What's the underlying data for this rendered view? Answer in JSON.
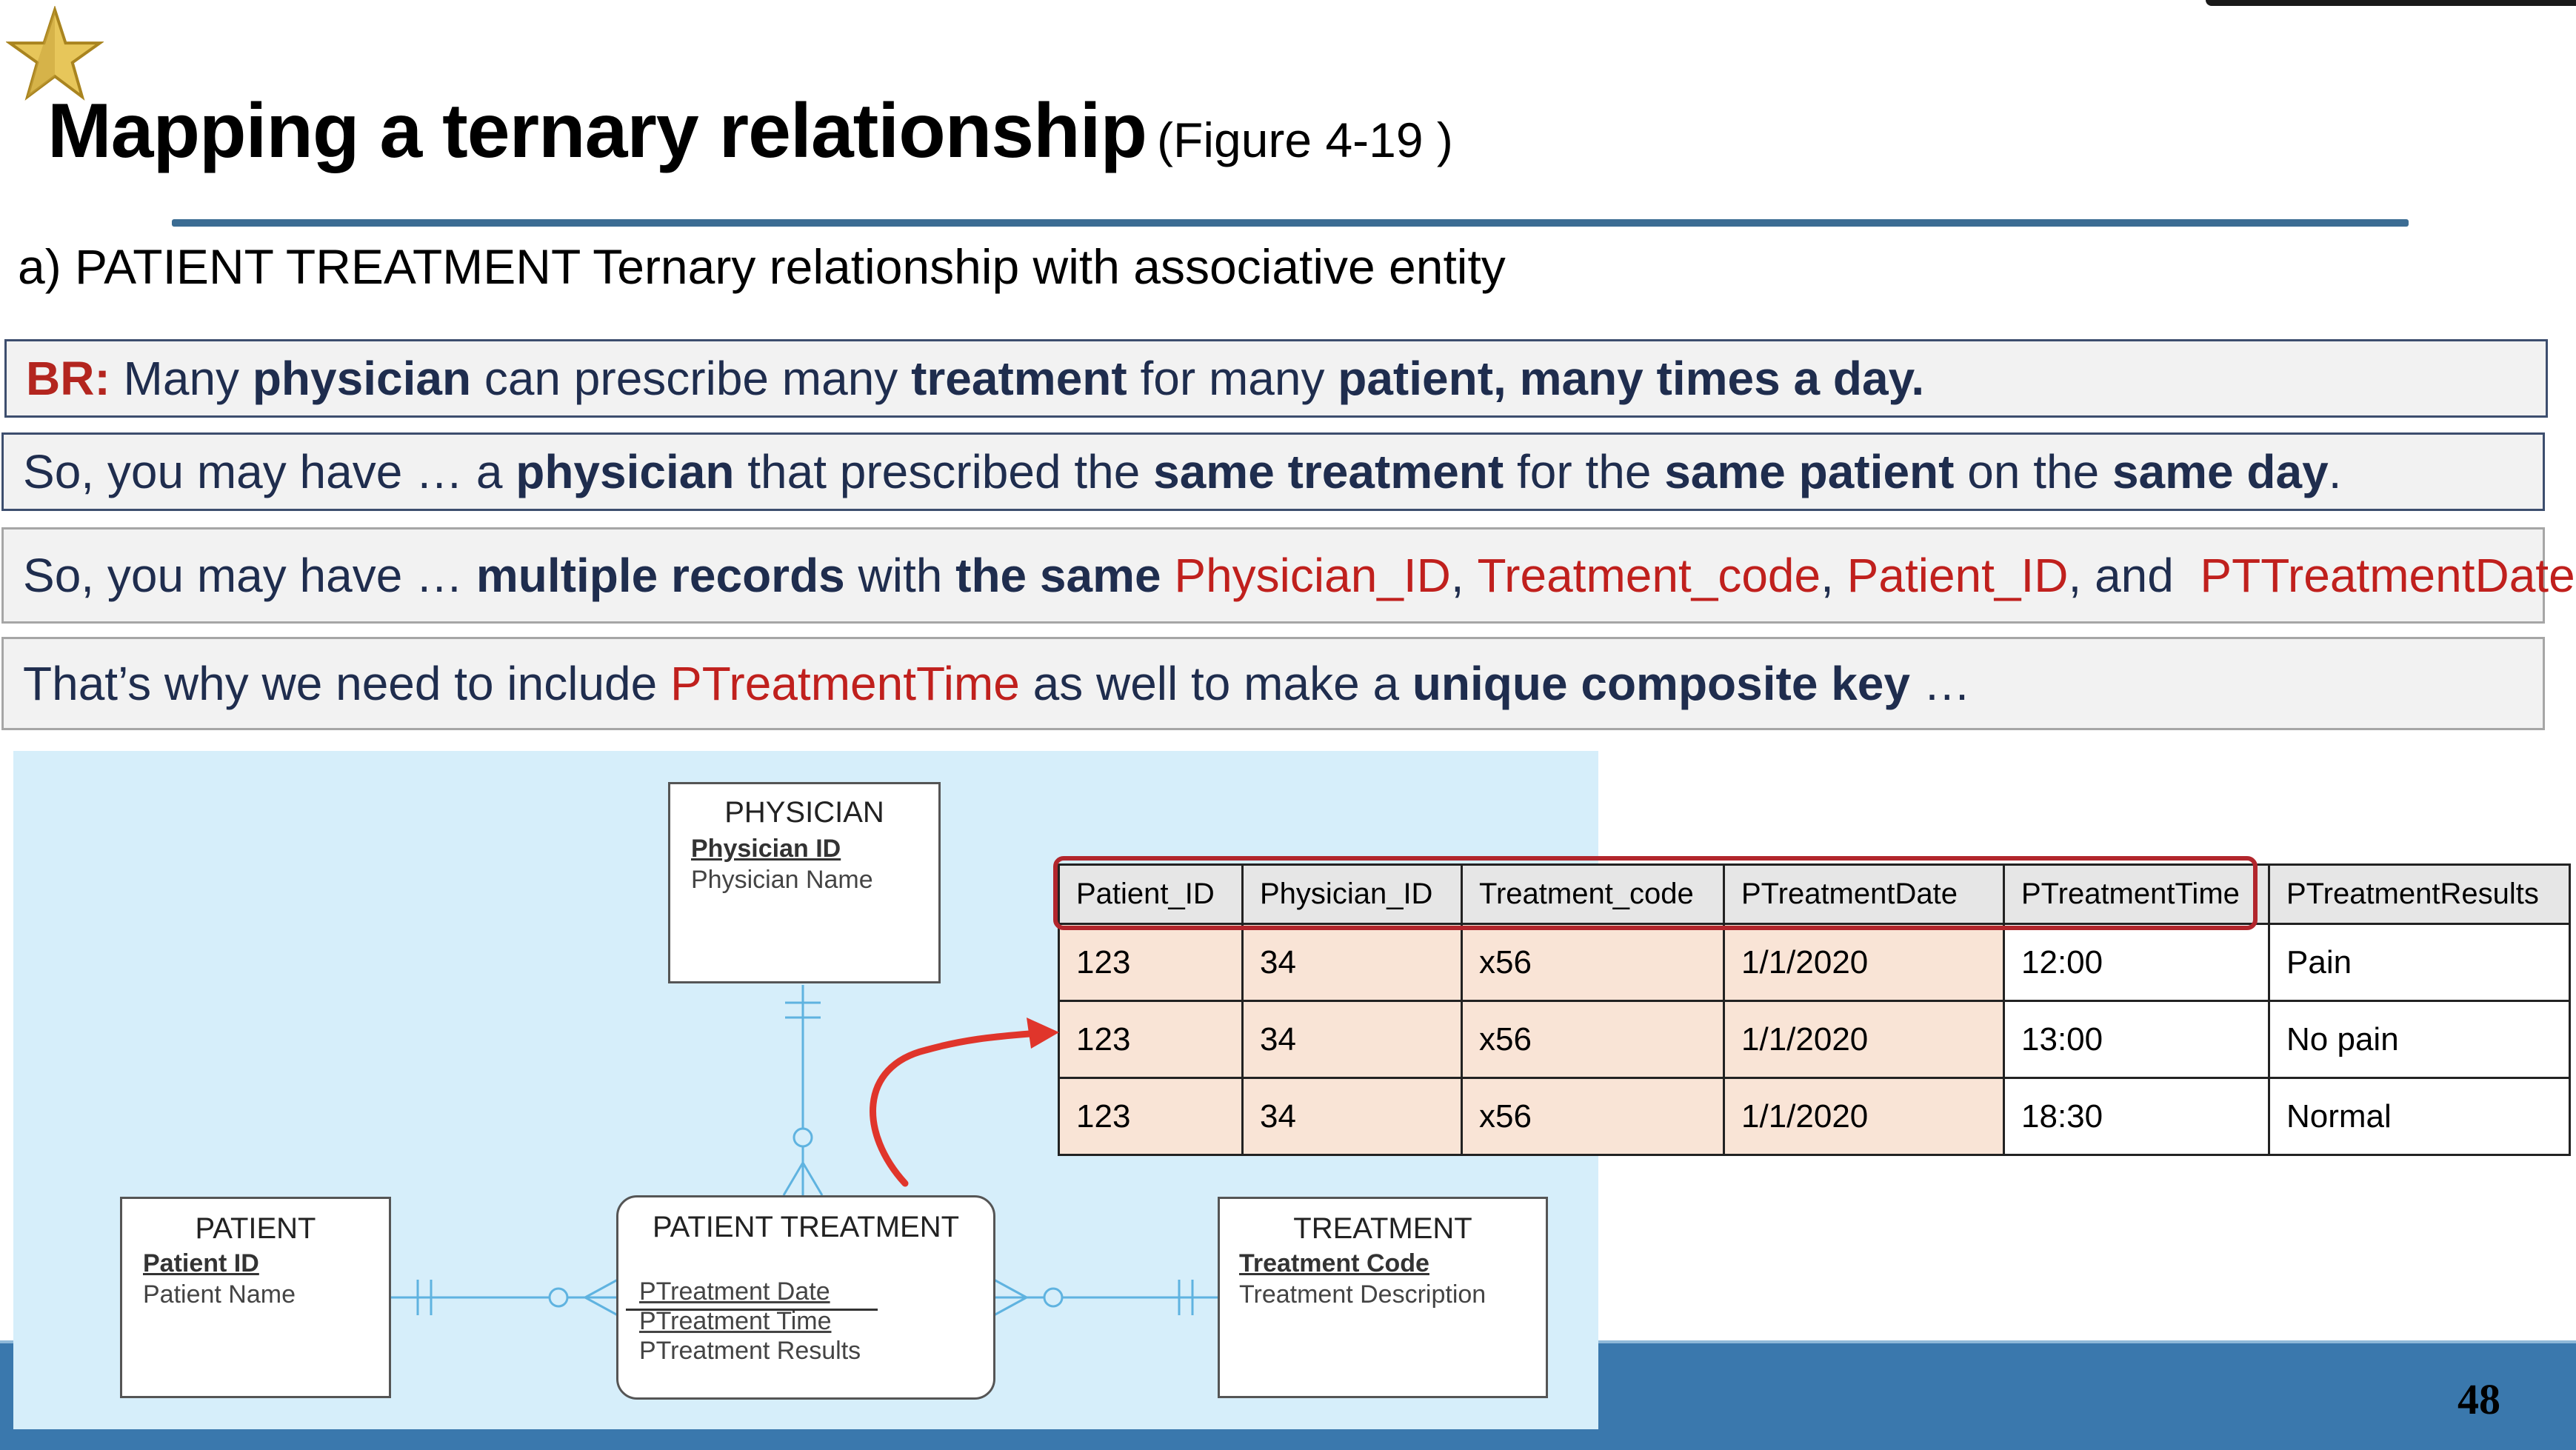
{
  "slide": {
    "title": "Mapping a ternary relationship",
    "title_ref": "(Figure 4-19 )",
    "subtitle": "a) PATIENT TREATMENT Ternary relationship with associative entity",
    "page_number": "48"
  },
  "boxes": {
    "b1": {
      "p1": "BR:",
      "p2": " Many ",
      "p3": "physician",
      "p4": " can prescribe many ",
      "p5": "treatment",
      "p6": " for many ",
      "p7": "patient, many times a day."
    },
    "b2": {
      "p1": "So, you may have … a ",
      "p2": "physician",
      "p3": " that prescribed the ",
      "p4": "same treatment",
      "p5": " for the ",
      "p6": "same patient",
      "p7": " on the ",
      "p8": "same day",
      "p9": "."
    },
    "b3": {
      "p1": "So, you may have … ",
      "p2": "multiple records",
      "p3": " with ",
      "p4": "the same",
      "p5": " Physician_ID",
      "p6": ", ",
      "p7": "Treatment_code",
      "p8": ", ",
      "p9": "Patient_ID",
      "p10": ", and  ",
      "p11": "PTTreatmentDate"
    },
    "b4": {
      "p1": "That’s why we need to include ",
      "p2": "PTreatmentTime",
      "p3": " as well to make a ",
      "p4": "unique composite key",
      "p5": " …"
    }
  },
  "er": {
    "physician": {
      "name": "PHYSICIAN",
      "key": "Physician ID",
      "attr": "Physician Name"
    },
    "patient": {
      "name": "PATIENT",
      "key": "Patient ID",
      "attr": "Patient Name"
    },
    "treatment": {
      "name": "TREATMENT",
      "key": "Treatment Code",
      "attr": "Treatment Description"
    },
    "patient_treatment": {
      "name": "PATIENT TREATMENT",
      "attrs": [
        "PTreatment Date",
        "PTreatment Time",
        "PTreatment Results"
      ]
    }
  },
  "table": {
    "headers": [
      "Patient_ID",
      "Physician_ID",
      "Treatment_code",
      "PTreatmentDate",
      "PTreatmentTime",
      "PTreatmentResults"
    ],
    "rows": [
      [
        "123",
        "34",
        "x56",
        "1/1/2020",
        "12:00",
        "Pain"
      ],
      [
        "123",
        "34",
        "x56",
        "1/1/2020",
        "13:00",
        "No pain"
      ],
      [
        "123",
        "34",
        "x56",
        "1/1/2020",
        "18:30",
        "Normal"
      ]
    ]
  },
  "colors": {
    "title_rule": "#3b6c93",
    "highlight_red": "#c0201d",
    "text_navy": "#1f2d4e",
    "er_panel": "#d6eefa",
    "er_lines": "#5fb3e0",
    "peach_cells": "#f9e4d6",
    "band": "#3a78ad"
  }
}
